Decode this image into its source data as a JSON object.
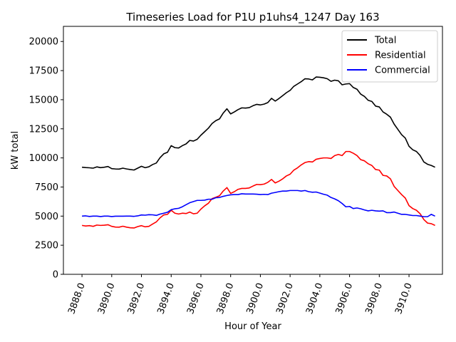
{
  "chart_data": {
    "type": "line",
    "title": "Timeseries Load for P1U p1uhs4_1247  Day 163",
    "xlabel": "Hour of Year",
    "ylabel": "kW total",
    "xlim": [
      3886.75,
      3912.25
    ],
    "ylim": [
      0,
      21300
    ],
    "xticks": [
      3888,
      3890,
      3892,
      3894,
      3896,
      3898,
      3900,
      3902,
      3904,
      3906,
      3908,
      3910
    ],
    "xtick_labels": [
      "3888.0",
      "3890.0",
      "3892.0",
      "3894.0",
      "3896.0",
      "3898.0",
      "3900.0",
      "3902.0",
      "3904.0",
      "3906.0",
      "3908.0",
      "3910.0"
    ],
    "yticks": [
      0,
      2500,
      5000,
      7500,
      10000,
      12500,
      15000,
      17500,
      20000
    ],
    "ytick_labels": [
      "0",
      "2500",
      "5000",
      "7500",
      "10000",
      "12500",
      "15000",
      "17500",
      "20000"
    ],
    "legend_position": "top-right",
    "x_start": 3888.0,
    "x_step": 0.25,
    "series": [
      {
        "name": "Total",
        "color": "#000000",
        "values": [
          9200,
          9170,
          9150,
          9120,
          9230,
          9160,
          9200,
          9260,
          9080,
          9050,
          9040,
          9120,
          9050,
          9000,
          8960,
          9120,
          9280,
          9160,
          9240,
          9430,
          9560,
          10020,
          10350,
          10480,
          11050,
          10880,
          10850,
          11050,
          11200,
          11500,
          11450,
          11600,
          11950,
          12250,
          12550,
          12950,
          13200,
          13350,
          13850,
          14220,
          13780,
          13950,
          14150,
          14300,
          14280,
          14320,
          14480,
          14600,
          14550,
          14620,
          14750,
          15120,
          14880,
          15100,
          15350,
          15600,
          15800,
          16150,
          16350,
          16550,
          16800,
          16780,
          16700,
          16950,
          16930,
          16880,
          16800,
          16580,
          16680,
          16620,
          16280,
          16350,
          16380,
          16050,
          15900,
          15480,
          15280,
          14950,
          14850,
          14450,
          14380,
          13950,
          13750,
          13500,
          12900,
          12450,
          12000,
          11700,
          11000,
          10700,
          10550,
          10200,
          9650,
          9450,
          9350,
          9200
        ]
      },
      {
        "name": "Residential",
        "color": "#ff0000",
        "values": [
          4200,
          4150,
          4180,
          4120,
          4230,
          4200,
          4220,
          4260,
          4120,
          4060,
          4050,
          4130,
          4050,
          4000,
          3980,
          4100,
          4180,
          4080,
          4120,
          4320,
          4500,
          4850,
          5100,
          5150,
          5500,
          5250,
          5180,
          5250,
          5220,
          5350,
          5200,
          5250,
          5600,
          5880,
          6100,
          6500,
          6620,
          6750,
          7150,
          7450,
          6950,
          7100,
          7300,
          7380,
          7380,
          7420,
          7580,
          7720,
          7700,
          7750,
          7900,
          8150,
          7850,
          8000,
          8200,
          8450,
          8600,
          8950,
          9150,
          9400,
          9600,
          9680,
          9650,
          9880,
          9950,
          10000,
          10000,
          9950,
          10200,
          10300,
          10200,
          10550,
          10550,
          10400,
          10200,
          9850,
          9750,
          9500,
          9350,
          9000,
          8950,
          8500,
          8450,
          8200,
          7550,
          7200,
          6850,
          6550,
          5900,
          5650,
          5500,
          5200,
          4700,
          4400,
          4350,
          4200
        ]
      },
      {
        "name": "Commercial",
        "color": "#0000ff",
        "values": [
          5000,
          5020,
          4970,
          5000,
          5000,
          4960,
          5000,
          5000,
          4960,
          4990,
          4990,
          4990,
          5000,
          5000,
          4980,
          5020,
          5100,
          5080,
          5120,
          5110,
          5060,
          5170,
          5250,
          5330,
          5550,
          5630,
          5670,
          5800,
          5980,
          6150,
          6250,
          6350,
          6350,
          6370,
          6450,
          6450,
          6580,
          6600,
          6700,
          6770,
          6830,
          6850,
          6850,
          6920,
          6900,
          6900,
          6900,
          6880,
          6850,
          6870,
          6850,
          6970,
          7030,
          7100,
          7150,
          7150,
          7200,
          7200,
          7200,
          7150,
          7200,
          7100,
          7050,
          7070,
          6980,
          6880,
          6800,
          6600,
          6480,
          6320,
          6080,
          5800,
          5830,
          5650,
          5700,
          5630,
          5530,
          5450,
          5500,
          5450,
          5430,
          5450,
          5300,
          5300,
          5350,
          5250,
          5150,
          5150,
          5100,
          5050,
          5050,
          5000,
          4950,
          4950,
          5150,
          5000
        ]
      }
    ]
  }
}
